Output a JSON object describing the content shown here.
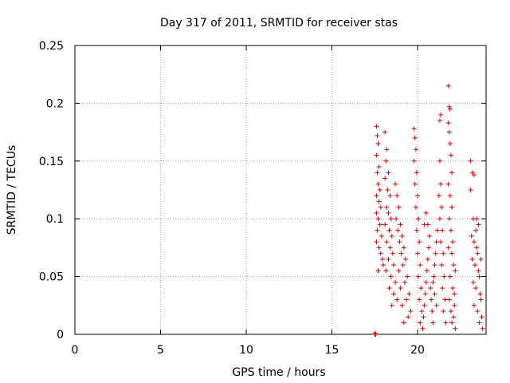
{
  "chart_data": {
    "type": "scatter",
    "title": "Day 317 of 2011, SRMTID for receiver stas",
    "xlabel": "GPS time / hours",
    "ylabel": "SRMTID / TECUs",
    "xlim": [
      0,
      24
    ],
    "ylim": [
      0,
      0.25
    ],
    "xticks": [
      0,
      5,
      10,
      15,
      20
    ],
    "xtick_labels": [
      "0",
      "5",
      "10",
      "15",
      "20"
    ],
    "yticks": [
      0,
      0.05,
      0.1,
      0.15,
      0.2,
      0.25
    ],
    "ytick_labels": [
      "0",
      "0.05",
      "0.1",
      "0.15",
      "0.2",
      "0.25"
    ],
    "grid": true,
    "marker": "+",
    "color": "#dd0000",
    "series": [
      {
        "name": "SRMTID",
        "points": [
          [
            17.5,
            0.0
          ],
          [
            17.52,
            0.001
          ],
          [
            17.55,
            0.0
          ],
          [
            17.6,
            0.18
          ],
          [
            17.65,
            0.172
          ],
          [
            17.7,
            0.165
          ],
          [
            17.6,
            0.155
          ],
          [
            17.75,
            0.145
          ],
          [
            17.65,
            0.14
          ],
          [
            17.7,
            0.13
          ],
          [
            17.8,
            0.125
          ],
          [
            17.6,
            0.12
          ],
          [
            17.75,
            0.115
          ],
          [
            17.85,
            0.11
          ],
          [
            17.6,
            0.105
          ],
          [
            17.7,
            0.1
          ],
          [
            17.8,
            0.095
          ],
          [
            17.65,
            0.09
          ],
          [
            17.9,
            0.085
          ],
          [
            17.6,
            0.08
          ],
          [
            17.75,
            0.075
          ],
          [
            17.85,
            0.07
          ],
          [
            17.95,
            0.065
          ],
          [
            18.0,
            0.06
          ],
          [
            17.7,
            0.055
          ],
          [
            18.1,
            0.175
          ],
          [
            18.2,
            0.16
          ],
          [
            18.15,
            0.15
          ],
          [
            18.3,
            0.14
          ],
          [
            18.1,
            0.135
          ],
          [
            18.25,
            0.125
          ],
          [
            18.4,
            0.12
          ],
          [
            18.2,
            0.11
          ],
          [
            18.3,
            0.105
          ],
          [
            18.45,
            0.1
          ],
          [
            18.1,
            0.095
          ],
          [
            18.35,
            0.09
          ],
          [
            18.5,
            0.085
          ],
          [
            18.2,
            0.08
          ],
          [
            18.4,
            0.075
          ],
          [
            18.55,
            0.07
          ],
          [
            18.3,
            0.065
          ],
          [
            18.6,
            0.06
          ],
          [
            18.15,
            0.055
          ],
          [
            18.45,
            0.05
          ],
          [
            18.7,
            0.045
          ],
          [
            18.35,
            0.04
          ],
          [
            18.6,
            0.035
          ],
          [
            18.8,
            0.03
          ],
          [
            18.5,
            0.025
          ],
          [
            18.7,
            0.13
          ],
          [
            18.8,
            0.12
          ],
          [
            18.9,
            0.11
          ],
          [
            18.75,
            0.1
          ],
          [
            19.0,
            0.095
          ],
          [
            18.85,
            0.09
          ],
          [
            19.1,
            0.085
          ],
          [
            18.95,
            0.08
          ],
          [
            19.2,
            0.075
          ],
          [
            19.05,
            0.07
          ],
          [
            19.3,
            0.065
          ],
          [
            19.15,
            0.06
          ],
          [
            18.9,
            0.055
          ],
          [
            19.4,
            0.05
          ],
          [
            19.25,
            0.045
          ],
          [
            19.0,
            0.04
          ],
          [
            19.5,
            0.035
          ],
          [
            19.35,
            0.03
          ],
          [
            19.1,
            0.025
          ],
          [
            19.6,
            0.02
          ],
          [
            19.45,
            0.015
          ],
          [
            19.2,
            0.01
          ],
          [
            19.8,
            0.178
          ],
          [
            19.85,
            0.17
          ],
          [
            19.9,
            0.16
          ],
          [
            19.8,
            0.15
          ],
          [
            19.95,
            0.14
          ],
          [
            19.85,
            0.13
          ],
          [
            20.0,
            0.12
          ],
          [
            19.9,
            0.11
          ],
          [
            20.05,
            0.1
          ],
          [
            19.95,
            0.09
          ],
          [
            20.1,
            0.08
          ],
          [
            20.0,
            0.07
          ],
          [
            20.15,
            0.06
          ],
          [
            20.05,
            0.05
          ],
          [
            20.2,
            0.04
          ],
          [
            20.1,
            0.03
          ],
          [
            20.25,
            0.02
          ],
          [
            20.15,
            0.01
          ],
          [
            20.3,
            0.005
          ],
          [
            20.35,
            0.015
          ],
          [
            20.4,
            0.025
          ],
          [
            20.45,
            0.035
          ],
          [
            20.5,
            0.045
          ],
          [
            20.55,
            0.055
          ],
          [
            20.6,
            0.065
          ],
          [
            20.65,
            0.075
          ],
          [
            20.7,
            0.085
          ],
          [
            20.4,
            0.095
          ],
          [
            20.5,
            0.105
          ],
          [
            20.6,
            0.095
          ],
          [
            20.75,
            0.04
          ],
          [
            20.8,
            0.03
          ],
          [
            20.85,
            0.02
          ],
          [
            20.9,
            0.01
          ],
          [
            20.95,
            0.05
          ],
          [
            21.0,
            0.06
          ],
          [
            21.05,
            0.07
          ],
          [
            21.1,
            0.08
          ],
          [
            21.15,
            0.09
          ],
          [
            21.0,
            0.035
          ],
          [
            21.1,
            0.025
          ],
          [
            20.9,
            0.045
          ],
          [
            21.3,
            0.15
          ],
          [
            21.35,
            0.13
          ],
          [
            21.25,
            0.12
          ],
          [
            21.4,
            0.11
          ],
          [
            21.3,
            0.1
          ],
          [
            21.45,
            0.09
          ],
          [
            21.35,
            0.08
          ],
          [
            21.5,
            0.07
          ],
          [
            21.4,
            0.06
          ],
          [
            21.55,
            0.05
          ],
          [
            21.45,
            0.04
          ],
          [
            21.6,
            0.03
          ],
          [
            21.5,
            0.02
          ],
          [
            21.65,
            0.01
          ],
          [
            21.3,
            0.185
          ],
          [
            21.35,
            0.19
          ],
          [
            21.8,
            0.215
          ],
          [
            21.85,
            0.197
          ],
          [
            21.9,
            0.195
          ],
          [
            21.8,
            0.183
          ],
          [
            21.85,
            0.175
          ],
          [
            21.9,
            0.165
          ],
          [
            21.95,
            0.155
          ],
          [
            22.0,
            0.14
          ],
          [
            21.8,
            0.13
          ],
          [
            21.9,
            0.12
          ],
          [
            22.0,
            0.11
          ],
          [
            21.85,
            0.1
          ],
          [
            21.95,
            0.09
          ],
          [
            22.05,
            0.08
          ],
          [
            21.8,
            0.075
          ],
          [
            22.0,
            0.07
          ],
          [
            22.1,
            0.06
          ],
          [
            21.9,
            0.05
          ],
          [
            22.05,
            0.04
          ],
          [
            21.85,
            0.03
          ],
          [
            22.15,
            0.025
          ],
          [
            21.95,
            0.02
          ],
          [
            22.1,
            0.015
          ],
          [
            22.0,
            0.01
          ],
          [
            22.2,
            0.005
          ],
          [
            22.15,
            0.035
          ],
          [
            22.2,
            0.055
          ],
          [
            23.1,
            0.15
          ],
          [
            23.2,
            0.14
          ],
          [
            23.3,
            0.138
          ],
          [
            23.1,
            0.125
          ],
          [
            23.25,
            0.1
          ],
          [
            23.4,
            0.09
          ],
          [
            23.15,
            0.085
          ],
          [
            23.3,
            0.08
          ],
          [
            23.45,
            0.075
          ],
          [
            23.5,
            0.07
          ],
          [
            23.2,
            0.065
          ],
          [
            23.35,
            0.06
          ],
          [
            23.55,
            0.055
          ],
          [
            23.6,
            0.05
          ],
          [
            23.25,
            0.045
          ],
          [
            23.4,
            0.04
          ],
          [
            23.65,
            0.035
          ],
          [
            23.7,
            0.03
          ],
          [
            23.3,
            0.025
          ],
          [
            23.5,
            0.02
          ],
          [
            23.75,
            0.015
          ],
          [
            23.6,
            0.01
          ],
          [
            23.8,
            0.005
          ],
          [
            23.45,
            0.1
          ],
          [
            23.55,
            0.095
          ],
          [
            23.7,
            0.065
          ]
        ]
      }
    ]
  }
}
